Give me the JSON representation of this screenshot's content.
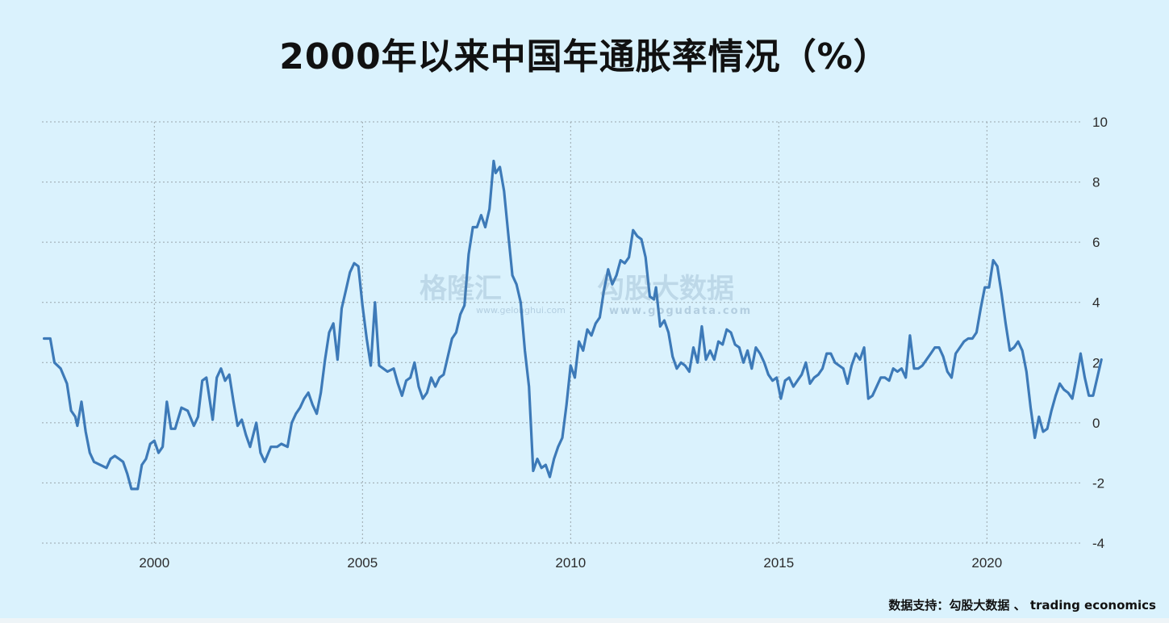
{
  "title": "2000年以来中国年通胀率情况（%）",
  "source_note": "数据支持：勾股大数据 、 trading economics",
  "watermark": {
    "logo_text": "格隆汇",
    "logo_url": "www.gelonghui.com",
    "brand_text": "勾股大数据",
    "brand_url": "www.gogudata.com"
  },
  "colors": {
    "background": "#daf2fd",
    "line": "#3d7ab8",
    "grid": "#9aa6ad"
  },
  "chart_data": {
    "type": "line",
    "title": "2000年以来中国年通胀率情况（%）",
    "xlabel": "",
    "ylabel": "",
    "xlim": [
      1997.3,
      2022.3
    ],
    "ylim": [
      -4,
      10
    ],
    "x_ticks": [
      2000,
      2005,
      2010,
      2015,
      2020
    ],
    "x_tick_labels": [
      "2000",
      "2005",
      "2010",
      "2015",
      "2020"
    ],
    "y_ticks": [
      -4,
      -2,
      0,
      2,
      4,
      6,
      8,
      10
    ],
    "y_tick_labels": [
      "-4",
      "-2",
      "0",
      "2",
      "4",
      "6",
      "8",
      "10"
    ],
    "y_axis_position": "right",
    "grid": true,
    "legend": "none",
    "series": [
      {
        "values": [
          [
            1997.35,
            2.8
          ],
          [
            1997.5,
            2.8
          ],
          [
            1997.6,
            2.0
          ],
          [
            1997.75,
            1.8
          ],
          [
            1997.9,
            1.3
          ],
          [
            1998.0,
            0.4
          ],
          [
            1998.1,
            0.2
          ],
          [
            1998.15,
            -0.1
          ],
          [
            1998.25,
            0.7
          ],
          [
            1998.35,
            -0.3
          ],
          [
            1998.45,
            -1.0
          ],
          [
            1998.55,
            -1.3
          ],
          [
            1998.7,
            -1.4
          ],
          [
            1998.85,
            -1.5
          ],
          [
            1998.95,
            -1.2
          ],
          [
            1999.05,
            -1.1
          ],
          [
            1999.15,
            -1.2
          ],
          [
            1999.25,
            -1.3
          ],
          [
            1999.35,
            -1.7
          ],
          [
            1999.45,
            -2.2
          ],
          [
            1999.6,
            -2.2
          ],
          [
            1999.7,
            -1.4
          ],
          [
            1999.8,
            -1.2
          ],
          [
            1999.9,
            -0.7
          ],
          [
            2000.0,
            -0.6
          ],
          [
            2000.1,
            -1.0
          ],
          [
            2000.2,
            -0.8
          ],
          [
            2000.3,
            0.7
          ],
          [
            2000.4,
            -0.2
          ],
          [
            2000.5,
            -0.2
          ],
          [
            2000.65,
            0.5
          ],
          [
            2000.8,
            0.4
          ],
          [
            2000.95,
            -0.1
          ],
          [
            2001.05,
            0.2
          ],
          [
            2001.15,
            1.4
          ],
          [
            2001.25,
            1.5
          ],
          [
            2001.4,
            0.1
          ],
          [
            2001.5,
            1.5
          ],
          [
            2001.6,
            1.8
          ],
          [
            2001.7,
            1.4
          ],
          [
            2001.8,
            1.6
          ],
          [
            2001.9,
            0.7
          ],
          [
            2002.0,
            -0.1
          ],
          [
            2002.1,
            0.1
          ],
          [
            2002.2,
            -0.4
          ],
          [
            2002.3,
            -0.8
          ],
          [
            2002.45,
            0.0
          ],
          [
            2002.55,
            -1.0
          ],
          [
            2002.65,
            -1.3
          ],
          [
            2002.8,
            -0.8
          ],
          [
            2002.95,
            -0.8
          ],
          [
            2003.05,
            -0.7
          ],
          [
            2003.2,
            -0.8
          ],
          [
            2003.3,
            0.0
          ],
          [
            2003.4,
            0.3
          ],
          [
            2003.5,
            0.5
          ],
          [
            2003.6,
            0.8
          ],
          [
            2003.7,
            1.0
          ],
          [
            2003.8,
            0.6
          ],
          [
            2003.9,
            0.3
          ],
          [
            2004.0,
            1.0
          ],
          [
            2004.1,
            2.1
          ],
          [
            2004.2,
            3.0
          ],
          [
            2004.3,
            3.3
          ],
          [
            2004.4,
            2.1
          ],
          [
            2004.5,
            3.8
          ],
          [
            2004.6,
            4.4
          ],
          [
            2004.7,
            5.0
          ],
          [
            2004.8,
            5.3
          ],
          [
            2004.9,
            5.2
          ],
          [
            2005.0,
            3.9
          ],
          [
            2005.1,
            2.8
          ],
          [
            2005.2,
            1.9
          ],
          [
            2005.3,
            4.0
          ],
          [
            2005.4,
            1.9
          ],
          [
            2005.5,
            1.8
          ],
          [
            2005.6,
            1.7
          ],
          [
            2005.75,
            1.8
          ],
          [
            2005.85,
            1.3
          ],
          [
            2005.95,
            0.9
          ],
          [
            2006.05,
            1.4
          ],
          [
            2006.15,
            1.5
          ],
          [
            2006.25,
            2.0
          ],
          [
            2006.35,
            1.2
          ],
          [
            2006.45,
            0.8
          ],
          [
            2006.55,
            1.0
          ],
          [
            2006.65,
            1.5
          ],
          [
            2006.75,
            1.2
          ],
          [
            2006.85,
            1.5
          ],
          [
            2006.95,
            1.6
          ],
          [
            2007.05,
            2.2
          ],
          [
            2007.15,
            2.8
          ],
          [
            2007.25,
            3.0
          ],
          [
            2007.35,
            3.6
          ],
          [
            2007.45,
            3.9
          ],
          [
            2007.55,
            5.6
          ],
          [
            2007.65,
            6.5
          ],
          [
            2007.75,
            6.5
          ],
          [
            2007.85,
            6.9
          ],
          [
            2007.95,
            6.5
          ],
          [
            2008.05,
            7.1
          ],
          [
            2008.15,
            8.7
          ],
          [
            2008.2,
            8.3
          ],
          [
            2008.3,
            8.5
          ],
          [
            2008.4,
            7.7
          ],
          [
            2008.5,
            6.3
          ],
          [
            2008.6,
            4.9
          ],
          [
            2008.7,
            4.6
          ],
          [
            2008.8,
            4.0
          ],
          [
            2008.9,
            2.4
          ],
          [
            2009.0,
            1.2
          ],
          [
            2009.1,
            -1.6
          ],
          [
            2009.2,
            -1.2
          ],
          [
            2009.3,
            -1.5
          ],
          [
            2009.4,
            -1.4
          ],
          [
            2009.5,
            -1.8
          ],
          [
            2009.6,
            -1.2
          ],
          [
            2009.7,
            -0.8
          ],
          [
            2009.8,
            -0.5
          ],
          [
            2009.9,
            0.6
          ],
          [
            2010.0,
            1.9
          ],
          [
            2010.1,
            1.5
          ],
          [
            2010.2,
            2.7
          ],
          [
            2010.3,
            2.4
          ],
          [
            2010.4,
            3.1
          ],
          [
            2010.5,
            2.9
          ],
          [
            2010.6,
            3.3
          ],
          [
            2010.7,
            3.5
          ],
          [
            2010.8,
            4.4
          ],
          [
            2010.9,
            5.1
          ],
          [
            2011.0,
            4.6
          ],
          [
            2011.1,
            4.9
          ],
          [
            2011.2,
            5.4
          ],
          [
            2011.3,
            5.3
          ],
          [
            2011.4,
            5.5
          ],
          [
            2011.5,
            6.4
          ],
          [
            2011.6,
            6.2
          ],
          [
            2011.7,
            6.1
          ],
          [
            2011.8,
            5.5
          ],
          [
            2011.9,
            4.2
          ],
          [
            2012.0,
            4.1
          ],
          [
            2012.05,
            4.5
          ],
          [
            2012.15,
            3.2
          ],
          [
            2012.25,
            3.4
          ],
          [
            2012.35,
            3.0
          ],
          [
            2012.45,
            2.2
          ],
          [
            2012.55,
            1.8
          ],
          [
            2012.65,
            2.0
          ],
          [
            2012.75,
            1.9
          ],
          [
            2012.85,
            1.7
          ],
          [
            2012.95,
            2.5
          ],
          [
            2013.05,
            2.0
          ],
          [
            2013.15,
            3.2
          ],
          [
            2013.25,
            2.1
          ],
          [
            2013.35,
            2.4
          ],
          [
            2013.45,
            2.1
          ],
          [
            2013.55,
            2.7
          ],
          [
            2013.65,
            2.6
          ],
          [
            2013.75,
            3.1
          ],
          [
            2013.85,
            3.0
          ],
          [
            2013.95,
            2.6
          ],
          [
            2014.05,
            2.5
          ],
          [
            2014.15,
            2.0
          ],
          [
            2014.25,
            2.4
          ],
          [
            2014.35,
            1.8
          ],
          [
            2014.45,
            2.5
          ],
          [
            2014.55,
            2.3
          ],
          [
            2014.65,
            2.0
          ],
          [
            2014.75,
            1.6
          ],
          [
            2014.85,
            1.4
          ],
          [
            2014.95,
            1.5
          ],
          [
            2015.05,
            0.8
          ],
          [
            2015.15,
            1.4
          ],
          [
            2015.25,
            1.5
          ],
          [
            2015.35,
            1.2
          ],
          [
            2015.45,
            1.4
          ],
          [
            2015.55,
            1.6
          ],
          [
            2015.65,
            2.0
          ],
          [
            2015.75,
            1.3
          ],
          [
            2015.85,
            1.5
          ],
          [
            2015.95,
            1.6
          ],
          [
            2016.05,
            1.8
          ],
          [
            2016.15,
            2.3
          ],
          [
            2016.25,
            2.3
          ],
          [
            2016.35,
            2.0
          ],
          [
            2016.45,
            1.9
          ],
          [
            2016.55,
            1.8
          ],
          [
            2016.65,
            1.3
          ],
          [
            2016.75,
            1.9
          ],
          [
            2016.85,
            2.3
          ],
          [
            2016.95,
            2.1
          ],
          [
            2017.05,
            2.5
          ],
          [
            2017.15,
            0.8
          ],
          [
            2017.25,
            0.9
          ],
          [
            2017.35,
            1.2
          ],
          [
            2017.45,
            1.5
          ],
          [
            2017.55,
            1.5
          ],
          [
            2017.65,
            1.4
          ],
          [
            2017.75,
            1.8
          ],
          [
            2017.85,
            1.7
          ],
          [
            2017.95,
            1.8
          ],
          [
            2018.05,
            1.5
          ],
          [
            2018.15,
            2.9
          ],
          [
            2018.25,
            1.8
          ],
          [
            2018.35,
            1.8
          ],
          [
            2018.45,
            1.9
          ],
          [
            2018.55,
            2.1
          ],
          [
            2018.65,
            2.3
          ],
          [
            2018.75,
            2.5
          ],
          [
            2018.85,
            2.5
          ],
          [
            2018.95,
            2.2
          ],
          [
            2019.05,
            1.7
          ],
          [
            2019.15,
            1.5
          ],
          [
            2019.25,
            2.3
          ],
          [
            2019.35,
            2.5
          ],
          [
            2019.45,
            2.7
          ],
          [
            2019.55,
            2.8
          ],
          [
            2019.65,
            2.8
          ],
          [
            2019.75,
            3.0
          ],
          [
            2019.85,
            3.8
          ],
          [
            2019.95,
            4.5
          ],
          [
            2020.05,
            4.5
          ],
          [
            2020.15,
            5.4
          ],
          [
            2020.25,
            5.2
          ],
          [
            2020.35,
            4.3
          ],
          [
            2020.45,
            3.3
          ],
          [
            2020.55,
            2.4
          ],
          [
            2020.65,
            2.5
          ],
          [
            2020.75,
            2.7
          ],
          [
            2020.85,
            2.4
          ],
          [
            2020.95,
            1.7
          ],
          [
            2021.05,
            0.5
          ],
          [
            2021.15,
            -0.5
          ],
          [
            2021.25,
            0.2
          ],
          [
            2021.35,
            -0.3
          ],
          [
            2021.45,
            -0.2
          ],
          [
            2021.55,
            0.4
          ],
          [
            2021.65,
            0.9
          ],
          [
            2021.75,
            1.3
          ],
          [
            2021.85,
            1.1
          ],
          [
            2021.95,
            1.0
          ],
          [
            2022.05,
            0.8
          ],
          [
            2022.15,
            1.5
          ],
          [
            2022.25,
            2.3
          ],
          [
            2022.35,
            1.5
          ],
          [
            2022.45,
            0.9
          ],
          [
            2022.55,
            0.9
          ],
          [
            2022.65,
            1.5
          ],
          [
            2022.75,
            2.1
          ]
        ]
      }
    ]
  }
}
